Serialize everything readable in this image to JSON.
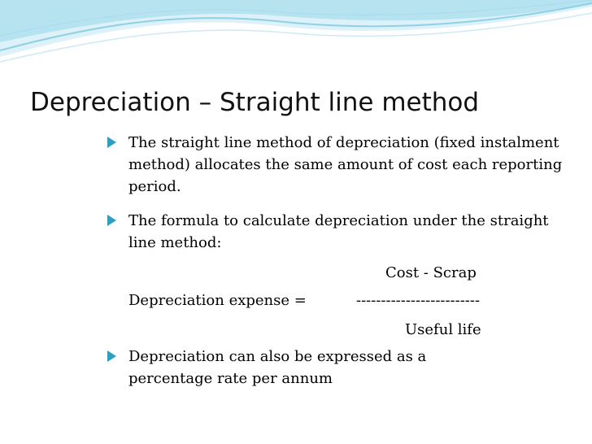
{
  "slide": {
    "title": "Depreciation – Straight line method",
    "bullets": [
      "The straight line method of depreciation (fixed instalment method) allocates the same amount of cost each reporting period.",
      "The formula to calculate depreciation under the straight line method:",
      "Depreciation can also be expressed as a percentage rate per annum"
    ],
    "formula": {
      "numerator": "Cost  - Scrap",
      "label": "Depreciation expense  =",
      "divider": "-------------------------",
      "denominator": "Useful life"
    }
  },
  "colors": {
    "bullet": "#2f9fc0",
    "wave_light": "#dcf1f8",
    "wave_mid": "#b7e3f1",
    "wave_accent": "#8fd0e6"
  }
}
